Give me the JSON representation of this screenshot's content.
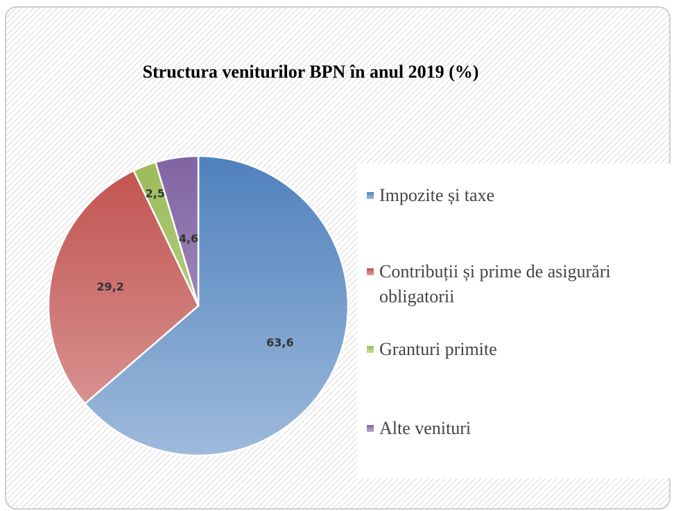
{
  "chart_data": {
    "type": "pie",
    "title": "Structura veniturilor BPN în anul 2019 (%)",
    "categories": [
      "Impozite și taxe",
      "Contribuții și prime de asigurări obligatorii",
      "Granturi primite",
      "Alte venituri"
    ],
    "values": [
      63.6,
      29.2,
      2.5,
      4.6
    ],
    "value_labels": [
      "63,6",
      "29,2",
      "2,5",
      "4,6"
    ],
    "colors": [
      "#4f81bd",
      "#c0504d",
      "#9bbb59",
      "#8064a2"
    ],
    "legend": "right"
  }
}
